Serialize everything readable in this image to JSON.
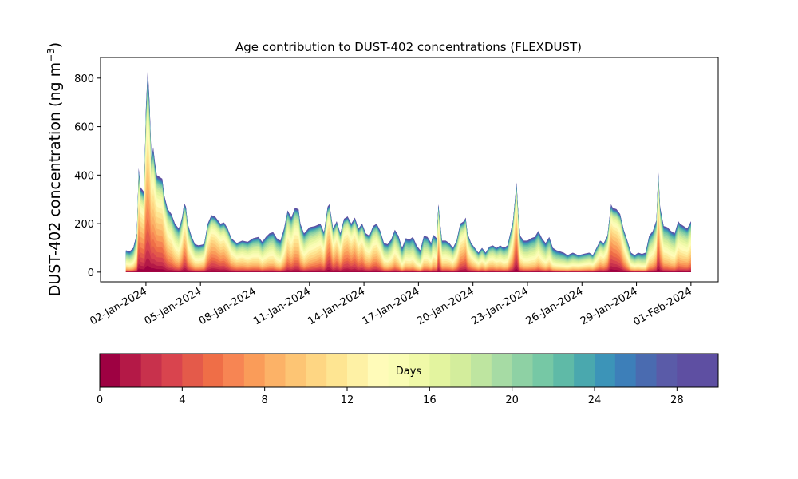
{
  "chart_data": {
    "type": "area",
    "stacked": true,
    "title": "Age contribution to DUST-402 concentrations (FLEXDUST)",
    "ylabel": "DUST-402 concentration (ng m",
    "ylabel_exponent": "−3",
    "ylabel_close": ")",
    "ylim": [
      -40,
      885
    ],
    "yticks": [
      0,
      200,
      400,
      600,
      800
    ],
    "ytick_labels": [
      "0",
      "200",
      "400",
      "600",
      "800"
    ],
    "xlim_days": [
      -1.5,
      32.5
    ],
    "xticks": [
      {
        "label": "02-Jan-2024",
        "day": 1
      },
      {
        "label": "05-Jan-2024",
        "day": 4
      },
      {
        "label": "08-Jan-2024",
        "day": 7
      },
      {
        "label": "11-Jan-2024",
        "day": 10
      },
      {
        "label": "14-Jan-2024",
        "day": 13
      },
      {
        "label": "17-Jan-2024",
        "day": 16
      },
      {
        "label": "20-Jan-2024",
        "day": 19
      },
      {
        "label": "23-Jan-2024",
        "day": 22
      },
      {
        "label": "26-Jan-2024",
        "day": 25
      },
      {
        "label": "29-Jan-2024",
        "day": 28
      },
      {
        "label": "01-Feb-2024",
        "day": 31
      }
    ],
    "total_series_keypoints": [
      [
        -0.1,
        90
      ],
      [
        0.1,
        85
      ],
      [
        0.3,
        100
      ],
      [
        0.5,
        160
      ],
      [
        0.6,
        430
      ],
      [
        0.7,
        350
      ],
      [
        0.9,
        330
      ],
      [
        1.0,
        680
      ],
      [
        1.1,
        840
      ],
      [
        1.2,
        700
      ],
      [
        1.3,
        470
      ],
      [
        1.4,
        515
      ],
      [
        1.5,
        450
      ],
      [
        1.6,
        400
      ],
      [
        1.8,
        390
      ],
      [
        1.9,
        385
      ],
      [
        2.0,
        320
      ],
      [
        2.2,
        260
      ],
      [
        2.4,
        240
      ],
      [
        2.6,
        200
      ],
      [
        2.8,
        180
      ],
      [
        2.9,
        200
      ],
      [
        3.0,
        230
      ],
      [
        3.1,
        285
      ],
      [
        3.2,
        270
      ],
      [
        3.3,
        200
      ],
      [
        3.5,
        150
      ],
      [
        3.7,
        115
      ],
      [
        3.9,
        110
      ],
      [
        4.2,
        115
      ],
      [
        4.4,
        200
      ],
      [
        4.6,
        235
      ],
      [
        4.8,
        230
      ],
      [
        5.1,
        200
      ],
      [
        5.3,
        205
      ],
      [
        5.5,
        180
      ],
      [
        5.7,
        140
      ],
      [
        6.0,
        120
      ],
      [
        6.3,
        130
      ],
      [
        6.6,
        125
      ],
      [
        6.9,
        140
      ],
      [
        7.2,
        145
      ],
      [
        7.4,
        125
      ],
      [
        7.6,
        145
      ],
      [
        7.8,
        160
      ],
      [
        8.0,
        165
      ],
      [
        8.2,
        140
      ],
      [
        8.4,
        130
      ],
      [
        8.6,
        180
      ],
      [
        8.8,
        255
      ],
      [
        9.0,
        225
      ],
      [
        9.2,
        265
      ],
      [
        9.4,
        260
      ],
      [
        9.5,
        200
      ],
      [
        9.7,
        160
      ],
      [
        10.0,
        185
      ],
      [
        10.3,
        190
      ],
      [
        10.6,
        200
      ],
      [
        10.8,
        165
      ],
      [
        11.0,
        270
      ],
      [
        11.1,
        280
      ],
      [
        11.3,
        180
      ],
      [
        11.5,
        210
      ],
      [
        11.7,
        160
      ],
      [
        11.9,
        220
      ],
      [
        12.1,
        230
      ],
      [
        12.3,
        200
      ],
      [
        12.5,
        225
      ],
      [
        12.7,
        180
      ],
      [
        12.9,
        200
      ],
      [
        13.1,
        160
      ],
      [
        13.3,
        150
      ],
      [
        13.5,
        190
      ],
      [
        13.7,
        200
      ],
      [
        13.9,
        170
      ],
      [
        14.1,
        120
      ],
      [
        14.3,
        115
      ],
      [
        14.5,
        135
      ],
      [
        14.7,
        175
      ],
      [
        14.9,
        150
      ],
      [
        15.1,
        100
      ],
      [
        15.3,
        140
      ],
      [
        15.5,
        135
      ],
      [
        15.7,
        145
      ],
      [
        15.9,
        110
      ],
      [
        16.1,
        90
      ],
      [
        16.3,
        150
      ],
      [
        16.5,
        145
      ],
      [
        16.7,
        120
      ],
      [
        16.8,
        155
      ],
      [
        17.0,
        140
      ],
      [
        17.1,
        280
      ],
      [
        17.2,
        200
      ],
      [
        17.3,
        130
      ],
      [
        17.5,
        130
      ],
      [
        17.7,
        120
      ],
      [
        17.9,
        100
      ],
      [
        18.1,
        130
      ],
      [
        18.3,
        200
      ],
      [
        18.5,
        210
      ],
      [
        18.6,
        225
      ],
      [
        18.7,
        160
      ],
      [
        18.9,
        120
      ],
      [
        19.1,
        100
      ],
      [
        19.3,
        80
      ],
      [
        19.5,
        100
      ],
      [
        19.7,
        80
      ],
      [
        19.9,
        105
      ],
      [
        20.1,
        110
      ],
      [
        20.3,
        100
      ],
      [
        20.5,
        110
      ],
      [
        20.7,
        100
      ],
      [
        20.9,
        110
      ],
      [
        21.2,
        210
      ],
      [
        21.4,
        370
      ],
      [
        21.5,
        240
      ],
      [
        21.6,
        150
      ],
      [
        21.8,
        130
      ],
      [
        22.0,
        130
      ],
      [
        22.2,
        140
      ],
      [
        22.4,
        145
      ],
      [
        22.6,
        170
      ],
      [
        22.8,
        140
      ],
      [
        23.0,
        120
      ],
      [
        23.2,
        145
      ],
      [
        23.4,
        100
      ],
      [
        23.6,
        90
      ],
      [
        23.8,
        85
      ],
      [
        24.0,
        80
      ],
      [
        24.2,
        70
      ],
      [
        24.5,
        80
      ],
      [
        24.8,
        70
      ],
      [
        25.1,
        75
      ],
      [
        25.4,
        80
      ],
      [
        25.6,
        70
      ],
      [
        25.8,
        100
      ],
      [
        26.0,
        130
      ],
      [
        26.2,
        120
      ],
      [
        26.4,
        150
      ],
      [
        26.6,
        280
      ],
      [
        26.7,
        265
      ],
      [
        26.9,
        260
      ],
      [
        27.1,
        240
      ],
      [
        27.3,
        175
      ],
      [
        27.5,
        130
      ],
      [
        27.7,
        80
      ],
      [
        27.9,
        70
      ],
      [
        28.1,
        80
      ],
      [
        28.3,
        75
      ],
      [
        28.5,
        80
      ],
      [
        28.7,
        150
      ],
      [
        28.9,
        170
      ],
      [
        29.1,
        215
      ],
      [
        29.2,
        420
      ],
      [
        29.3,
        270
      ],
      [
        29.5,
        190
      ],
      [
        29.7,
        185
      ],
      [
        29.9,
        170
      ],
      [
        30.1,
        160
      ],
      [
        30.3,
        210
      ],
      [
        30.4,
        200
      ],
      [
        30.6,
        190
      ],
      [
        30.8,
        180
      ],
      [
        31.0,
        210
      ]
    ],
    "colorbar": {
      "label": "Days",
      "range": [
        0,
        30
      ],
      "ticks": [
        0,
        4,
        8,
        12,
        16,
        20,
        24,
        28
      ],
      "tick_labels": [
        "0",
        "4",
        "8",
        "12",
        "16",
        "20",
        "24",
        "28"
      ],
      "bin_colors": [
        "#9e0142",
        "#b41947",
        "#c8314c",
        "#d9444e",
        "#e45a4a",
        "#ef6e47",
        "#f78553",
        "#fa9c59",
        "#fcb267",
        "#fdc574",
        "#fed683",
        "#fee592",
        "#fef1a5",
        "#fffbb9",
        "#f9fcb4",
        "#f0f9a8",
        "#e3f49f",
        "#d3ed9c",
        "#bee5a0",
        "#a6dba4",
        "#8ed1a4",
        "#76c8a5",
        "#5fbaa7",
        "#4aa8ae",
        "#3c94b8",
        "#3d7fb9",
        "#4a6bb0",
        "#5a5ba8",
        "#5e4fa2",
        "#5e4fa2"
      ]
    }
  }
}
